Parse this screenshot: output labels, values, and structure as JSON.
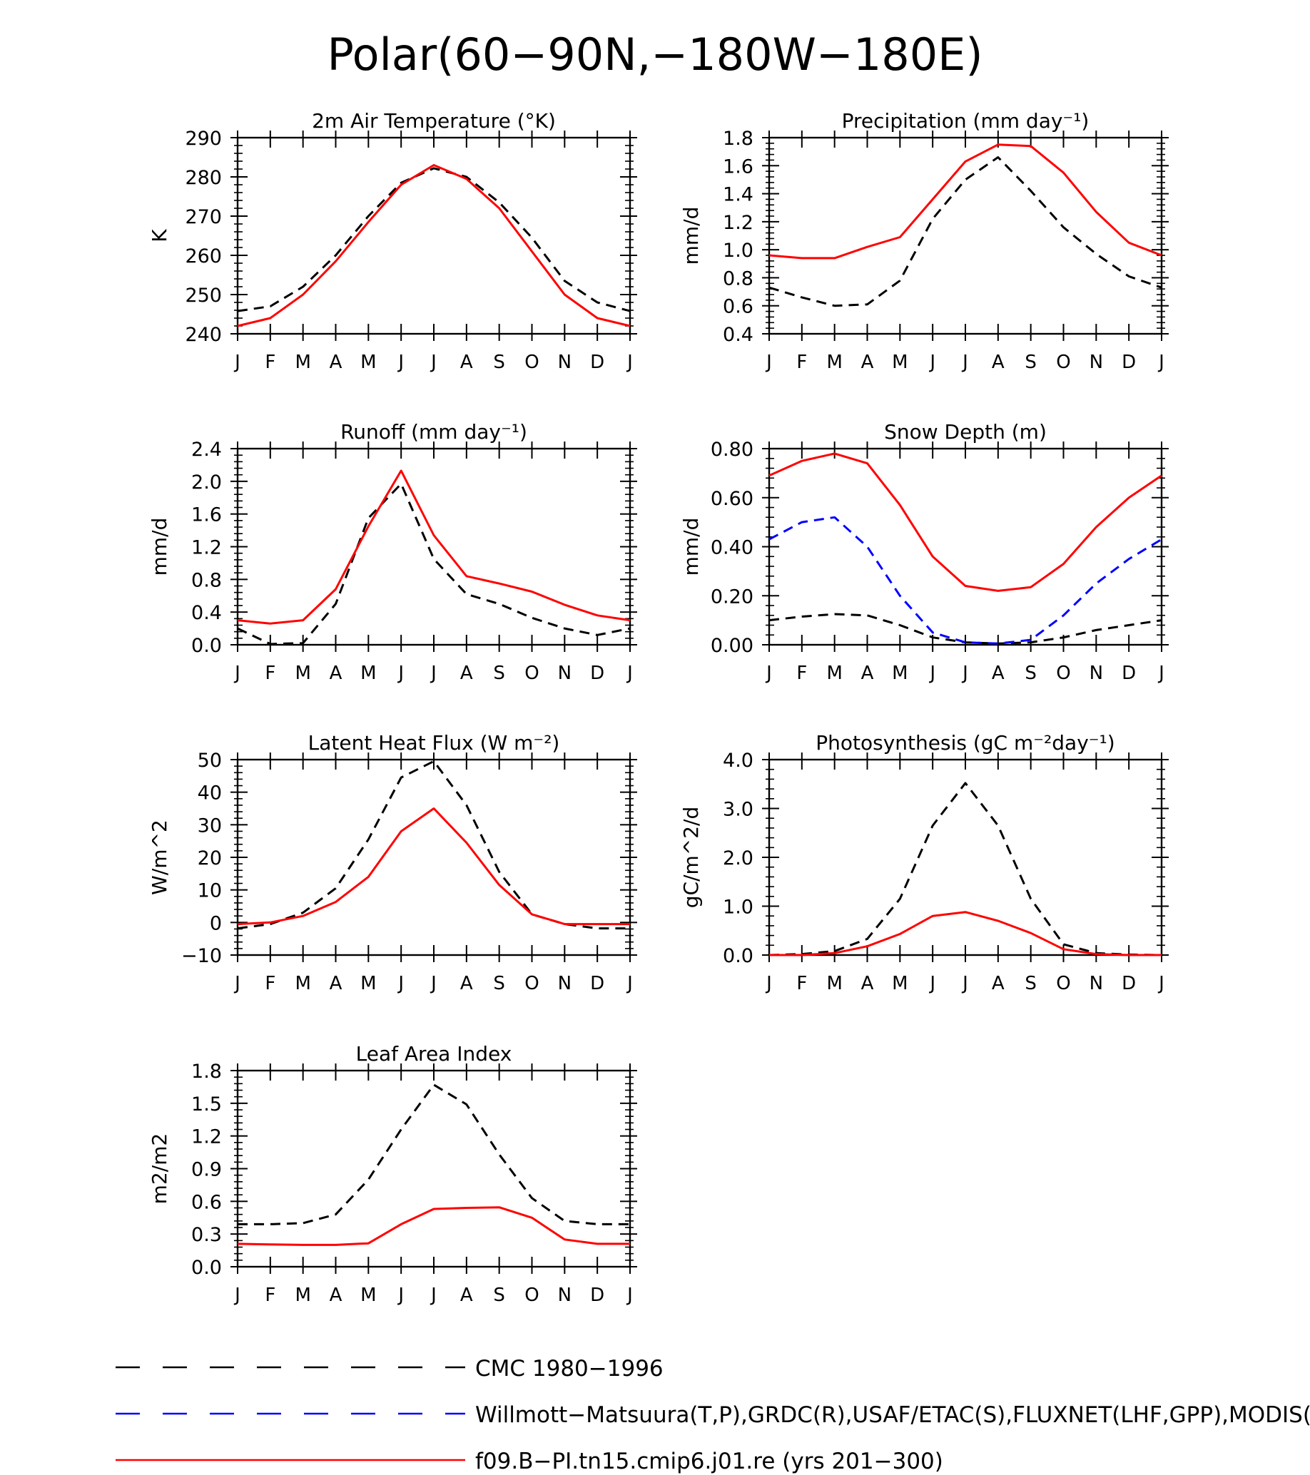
{
  "figure_title": "Polar(60−90N,−180W−180E)",
  "month_labels": [
    "J",
    "F",
    "M",
    "A",
    "M",
    "J",
    "J",
    "A",
    "S",
    "O",
    "N",
    "D",
    "J"
  ],
  "colors": {
    "black": "#000000",
    "blue": "#0000ff",
    "red": "#ff0000"
  },
  "legend": [
    {
      "label": "CMC 1980−1996",
      "color": "#000000",
      "style": "dashed"
    },
    {
      "label": "Willmott−Matsuura(T,P),GRDC(R),USAF/ETAC(S),FLUXNET(LHF,GPP),MODIS(LAI)",
      "color": "#0000ff",
      "style": "dashed"
    },
    {
      "label": "f09.B−PI.tn15.cmip6.j01.re (yrs 201−300)",
      "color": "#ff0000",
      "style": "solid"
    }
  ],
  "chart_data": [
    {
      "type": "line",
      "title": "2m Air Temperature (°K)",
      "ylabel": "K",
      "ylim": [
        240,
        290
      ],
      "yticks": [
        240,
        250,
        260,
        270,
        280,
        290
      ],
      "ytick_labels": [
        "240",
        "250",
        "260",
        "270",
        "280",
        "290"
      ],
      "series": [
        {
          "color": "#000000",
          "style": "dashed",
          "values": [
            245.8,
            247,
            252,
            260,
            270,
            278.5,
            282.2,
            280,
            273.5,
            264.5,
            253.5,
            248,
            245.8
          ]
        },
        {
          "color": "#ff0000",
          "style": "solid",
          "values": [
            242,
            244,
            250,
            258.5,
            268.5,
            278,
            283,
            279.5,
            272,
            261,
            250,
            244,
            242
          ]
        }
      ]
    },
    {
      "type": "line",
      "title": "Precipitation (mm day⁻¹)",
      "ylabel": "mm/d",
      "ylim": [
        0.4,
        1.8
      ],
      "yticks": [
        0.4,
        0.6,
        0.8,
        1.0,
        1.2,
        1.4,
        1.6,
        1.8
      ],
      "ytick_labels": [
        "0.4",
        "0.6",
        "0.8",
        "1.0",
        "1.2",
        "1.4",
        "1.6",
        "1.8"
      ],
      "series": [
        {
          "color": "#000000",
          "style": "dashed",
          "values": [
            0.73,
            0.66,
            0.6,
            0.61,
            0.78,
            1.22,
            1.5,
            1.66,
            1.42,
            1.16,
            0.97,
            0.81,
            0.73
          ]
        },
        {
          "color": "#ff0000",
          "style": "solid",
          "values": [
            0.96,
            0.94,
            0.94,
            1.02,
            1.09,
            1.36,
            1.63,
            1.75,
            1.74,
            1.55,
            1.27,
            1.05,
            0.96
          ]
        }
      ]
    },
    {
      "type": "line",
      "title": "Runoff (mm day⁻¹)",
      "ylabel": "mm/d",
      "ylim": [
        0.0,
        2.4
      ],
      "yticks": [
        0.0,
        0.4,
        0.8,
        1.2,
        1.6,
        2.0,
        2.4
      ],
      "ytick_labels": [
        "0.0",
        "0.4",
        "0.8",
        "1.2",
        "1.6",
        "2.0",
        "2.4"
      ],
      "series": [
        {
          "color": "#000000",
          "style": "dashed",
          "values": [
            0.2,
            0.01,
            0.02,
            0.5,
            1.55,
            1.97,
            1.05,
            0.62,
            0.5,
            0.33,
            0.2,
            0.12,
            0.2
          ]
        },
        {
          "color": "#ff0000",
          "style": "solid",
          "values": [
            0.3,
            0.26,
            0.3,
            0.68,
            1.45,
            2.13,
            1.34,
            0.84,
            0.75,
            0.65,
            0.49,
            0.36,
            0.3
          ]
        }
      ]
    },
    {
      "type": "line",
      "title": "Snow Depth (m)",
      "ylabel": "mm/d",
      "ylim": [
        0.0,
        0.8
      ],
      "yticks": [
        0.0,
        0.2,
        0.4,
        0.6,
        0.8
      ],
      "ytick_labels": [
        "0.00",
        "0.20",
        "0.40",
        "0.60",
        "0.80"
      ],
      "series": [
        {
          "color": "#000000",
          "style": "dashed",
          "values": [
            0.1,
            0.115,
            0.125,
            0.12,
            0.08,
            0.03,
            0.01,
            0.005,
            0.01,
            0.03,
            0.06,
            0.08,
            0.1
          ]
        },
        {
          "color": "#0000ff",
          "style": "dashed",
          "values": [
            0.43,
            0.5,
            0.52,
            0.4,
            0.2,
            0.05,
            0.01,
            0.005,
            0.02,
            0.12,
            0.25,
            0.35,
            0.43
          ]
        },
        {
          "color": "#ff0000",
          "style": "solid",
          "values": [
            0.69,
            0.75,
            0.78,
            0.74,
            0.57,
            0.36,
            0.24,
            0.22,
            0.235,
            0.33,
            0.48,
            0.6,
            0.69
          ]
        }
      ]
    },
    {
      "type": "line",
      "title": "Latent Heat Flux (W m⁻²)",
      "ylabel": "W/m^2",
      "ylim": [
        -10,
        50
      ],
      "yticks": [
        -10,
        0,
        10,
        20,
        30,
        40,
        50
      ],
      "ytick_labels": [
        "−10",
        "0",
        "10",
        "20",
        "30",
        "40",
        "50"
      ],
      "series": [
        {
          "color": "#000000",
          "style": "dashed",
          "values": [
            -1.8,
            -0.5,
            3,
            10.5,
            25.5,
            44.5,
            49.5,
            36,
            15.5,
            2.5,
            -0.5,
            -1.8,
            -1.8
          ]
        },
        {
          "color": "#ff0000",
          "style": "solid",
          "values": [
            -0.5,
            0,
            2,
            6.3,
            14,
            28,
            35,
            24.5,
            11.5,
            2.5,
            -0.5,
            -0.5,
            -0.5
          ]
        }
      ]
    },
    {
      "type": "line",
      "title": "Photosynthesis (gC m⁻²day⁻¹)",
      "ylabel": "gC/m^2/d",
      "ylim": [
        0.0,
        4.0
      ],
      "yticks": [
        0.0,
        1.0,
        2.0,
        3.0,
        4.0
      ],
      "ytick_labels": [
        "0.0",
        "1.0",
        "2.0",
        "3.0",
        "4.0"
      ],
      "series": [
        {
          "color": "#000000",
          "style": "dashed",
          "values": [
            0.0,
            0.02,
            0.08,
            0.33,
            1.15,
            2.65,
            3.52,
            2.65,
            1.15,
            0.22,
            0.04,
            0.01,
            0.0
          ]
        },
        {
          "color": "#ff0000",
          "style": "solid",
          "values": [
            0.0,
            0.0,
            0.04,
            0.18,
            0.43,
            0.8,
            0.88,
            0.7,
            0.45,
            0.12,
            0.02,
            0.0,
            0.0
          ]
        }
      ]
    },
    {
      "type": "line",
      "title": "Leaf Area Index",
      "ylabel": "m2/m2",
      "ylim": [
        0.0,
        1.8
      ],
      "yticks": [
        0.0,
        0.3,
        0.6,
        0.9,
        1.2,
        1.5,
        1.8
      ],
      "ytick_labels": [
        "0.0",
        "0.3",
        "0.6",
        "0.9",
        "1.2",
        "1.5",
        "1.8"
      ],
      "series": [
        {
          "color": "#000000",
          "style": "dashed",
          "values": [
            0.39,
            0.39,
            0.4,
            0.48,
            0.8,
            1.26,
            1.67,
            1.49,
            1.03,
            0.63,
            0.42,
            0.39,
            0.39
          ]
        },
        {
          "color": "#ff0000",
          "style": "solid",
          "values": [
            0.21,
            0.205,
            0.2,
            0.2,
            0.215,
            0.39,
            0.53,
            0.54,
            0.545,
            0.45,
            0.25,
            0.21,
            0.21
          ]
        }
      ]
    }
  ]
}
